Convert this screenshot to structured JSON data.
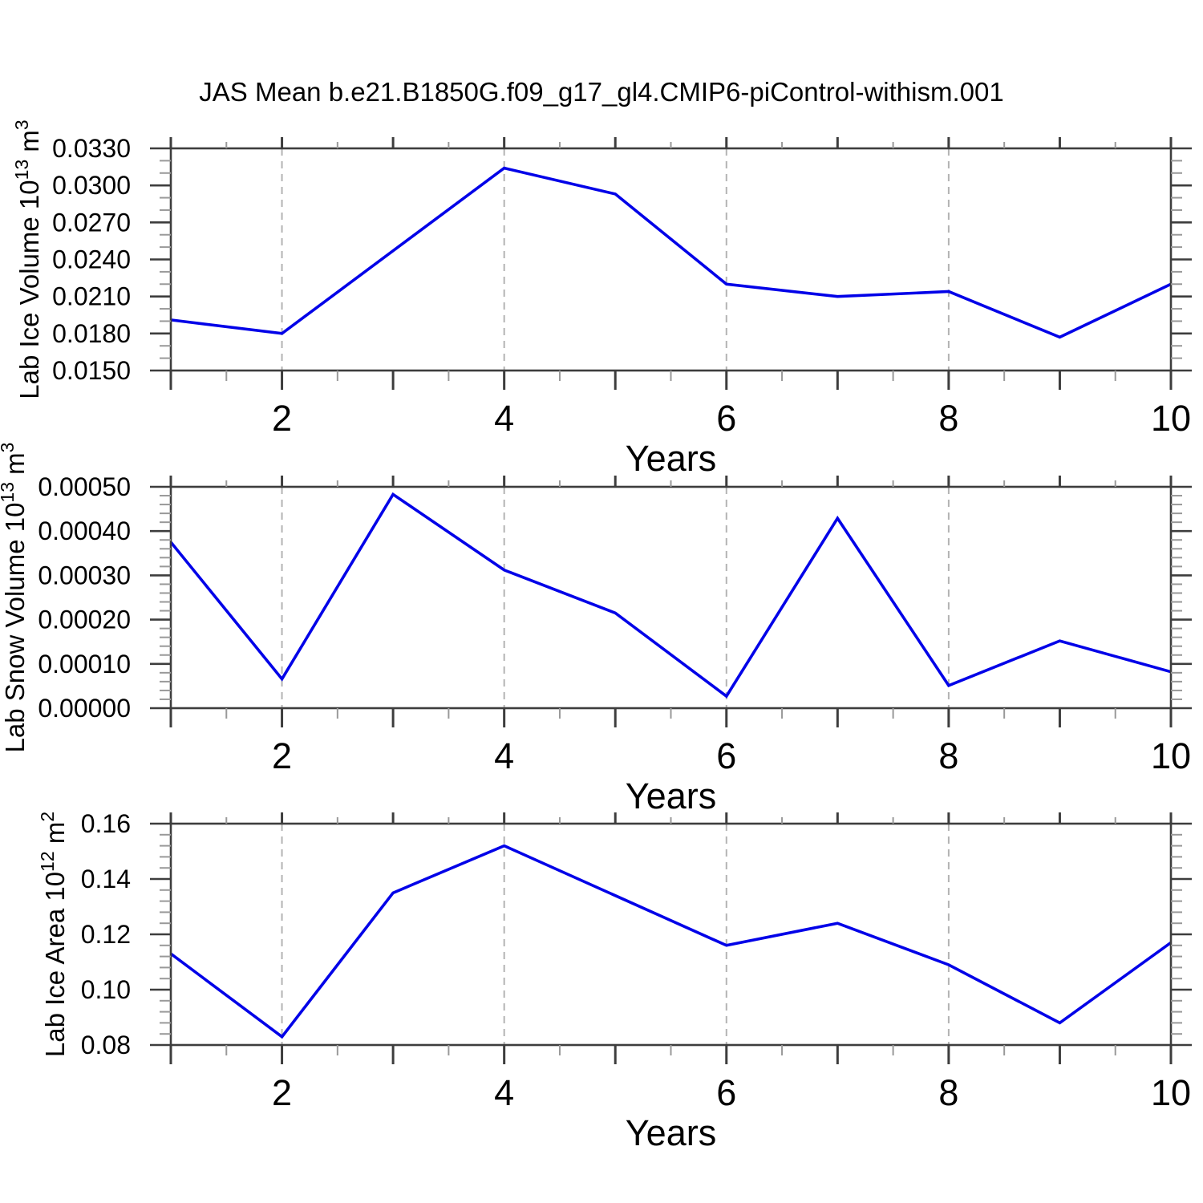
{
  "title": "JAS Mean b.e21.B1850G.f09_g17_gl4.CMIP6-piControl-withism.001",
  "style": {
    "line_color": "#0202e8",
    "grid_color": "#b3b3b3",
    "axis_color": "#3d3d3d",
    "minor_tick_color": "#999999",
    "text_color": "#000000"
  },
  "chart_data": [
    {
      "type": "line",
      "name": "lab-ice-volume",
      "y_title_parts": [
        {
          "text": "Lab Ice Volume 10",
          "sup": false
        },
        {
          "text": "13",
          "sup": true
        },
        {
          "text": " m",
          "sup": false
        },
        {
          "text": "3",
          "sup": true
        }
      ],
      "x_title": "Years",
      "x": [
        1,
        2,
        3,
        4,
        5,
        6,
        7,
        8,
        9,
        10
      ],
      "values": [
        0.0191,
        0.018,
        0.0247,
        0.0314,
        0.0293,
        0.022,
        0.021,
        0.0214,
        0.0177,
        0.022
      ],
      "xlim": [
        1,
        10
      ],
      "ylim": [
        0.015,
        0.033
      ],
      "y_major_ticks": [
        0.015,
        0.018,
        0.021,
        0.024,
        0.027,
        0.03,
        0.033
      ],
      "y_tick_labels": [
        "0.0150",
        "0.0180",
        "0.0210",
        "0.0240",
        "0.0270",
        "0.0300",
        "0.0330"
      ],
      "y_minor_step": 0.001,
      "x_labeled_ticks": [
        2,
        4,
        6,
        8,
        10
      ],
      "x_tick_labels": [
        "2",
        "4",
        "6",
        "8",
        "10"
      ],
      "grid_x": [
        2,
        4,
        6,
        8
      ],
      "legend": "none",
      "grid": "dashed-vertical-at-even-years"
    },
    {
      "type": "line",
      "name": "lab-snow-volume",
      "y_title_parts": [
        {
          "text": "Lab Snow Volume 10",
          "sup": false
        },
        {
          "text": "13",
          "sup": true
        },
        {
          "text": " m",
          "sup": false
        },
        {
          "text": "3",
          "sup": true
        }
      ],
      "x_title": "Years",
      "x": [
        1,
        2,
        3,
        4,
        5,
        6,
        7,
        8,
        9,
        10
      ],
      "values": [
        0.000375,
        6.6e-05,
        0.000483,
        0.000312,
        0.000215,
        2.7e-05,
        0.000429,
        5.1e-05,
        0.000152,
        8.2e-05
      ],
      "xlim": [
        1,
        10
      ],
      "ylim": [
        0.0,
        0.0005
      ],
      "y_major_ticks": [
        0.0,
        0.0001,
        0.0002,
        0.0003,
        0.0004,
        0.0005
      ],
      "y_tick_labels": [
        "0.00000",
        "0.00010",
        "0.00020",
        "0.00030",
        "0.00040",
        "0.00050"
      ],
      "y_minor_step": 2e-05,
      "x_labeled_ticks": [
        2,
        4,
        6,
        8,
        10
      ],
      "x_tick_labels": [
        "2",
        "4",
        "6",
        "8",
        "10"
      ],
      "grid_x": [
        2,
        4,
        6,
        8
      ],
      "legend": "none",
      "grid": "dashed-vertical-at-even-years"
    },
    {
      "type": "line",
      "name": "lab-ice-area",
      "y_title_parts": [
        {
          "text": "Lab Ice Area 10",
          "sup": false
        },
        {
          "text": "12",
          "sup": true
        },
        {
          "text": " m",
          "sup": false
        },
        {
          "text": "2",
          "sup": true
        }
      ],
      "x_title": "Years",
      "x": [
        1,
        2,
        3,
        4,
        5,
        6,
        7,
        8,
        9,
        10
      ],
      "values": [
        0.113,
        0.083,
        0.135,
        0.152,
        0.134,
        0.116,
        0.124,
        0.109,
        0.088,
        0.117
      ],
      "xlim": [
        1,
        10
      ],
      "ylim": [
        0.08,
        0.16
      ],
      "y_major_ticks": [
        0.08,
        0.1,
        0.12,
        0.14,
        0.16
      ],
      "y_tick_labels": [
        "0.08",
        "0.10",
        "0.12",
        "0.14",
        "0.16"
      ],
      "y_minor_step": 0.004,
      "x_labeled_ticks": [
        2,
        4,
        6,
        8,
        10
      ],
      "x_tick_labels": [
        "2",
        "4",
        "6",
        "8",
        "10"
      ],
      "grid_x": [
        2,
        4,
        6,
        8
      ],
      "legend": "none",
      "grid": "dashed-vertical-at-even-years"
    }
  ]
}
